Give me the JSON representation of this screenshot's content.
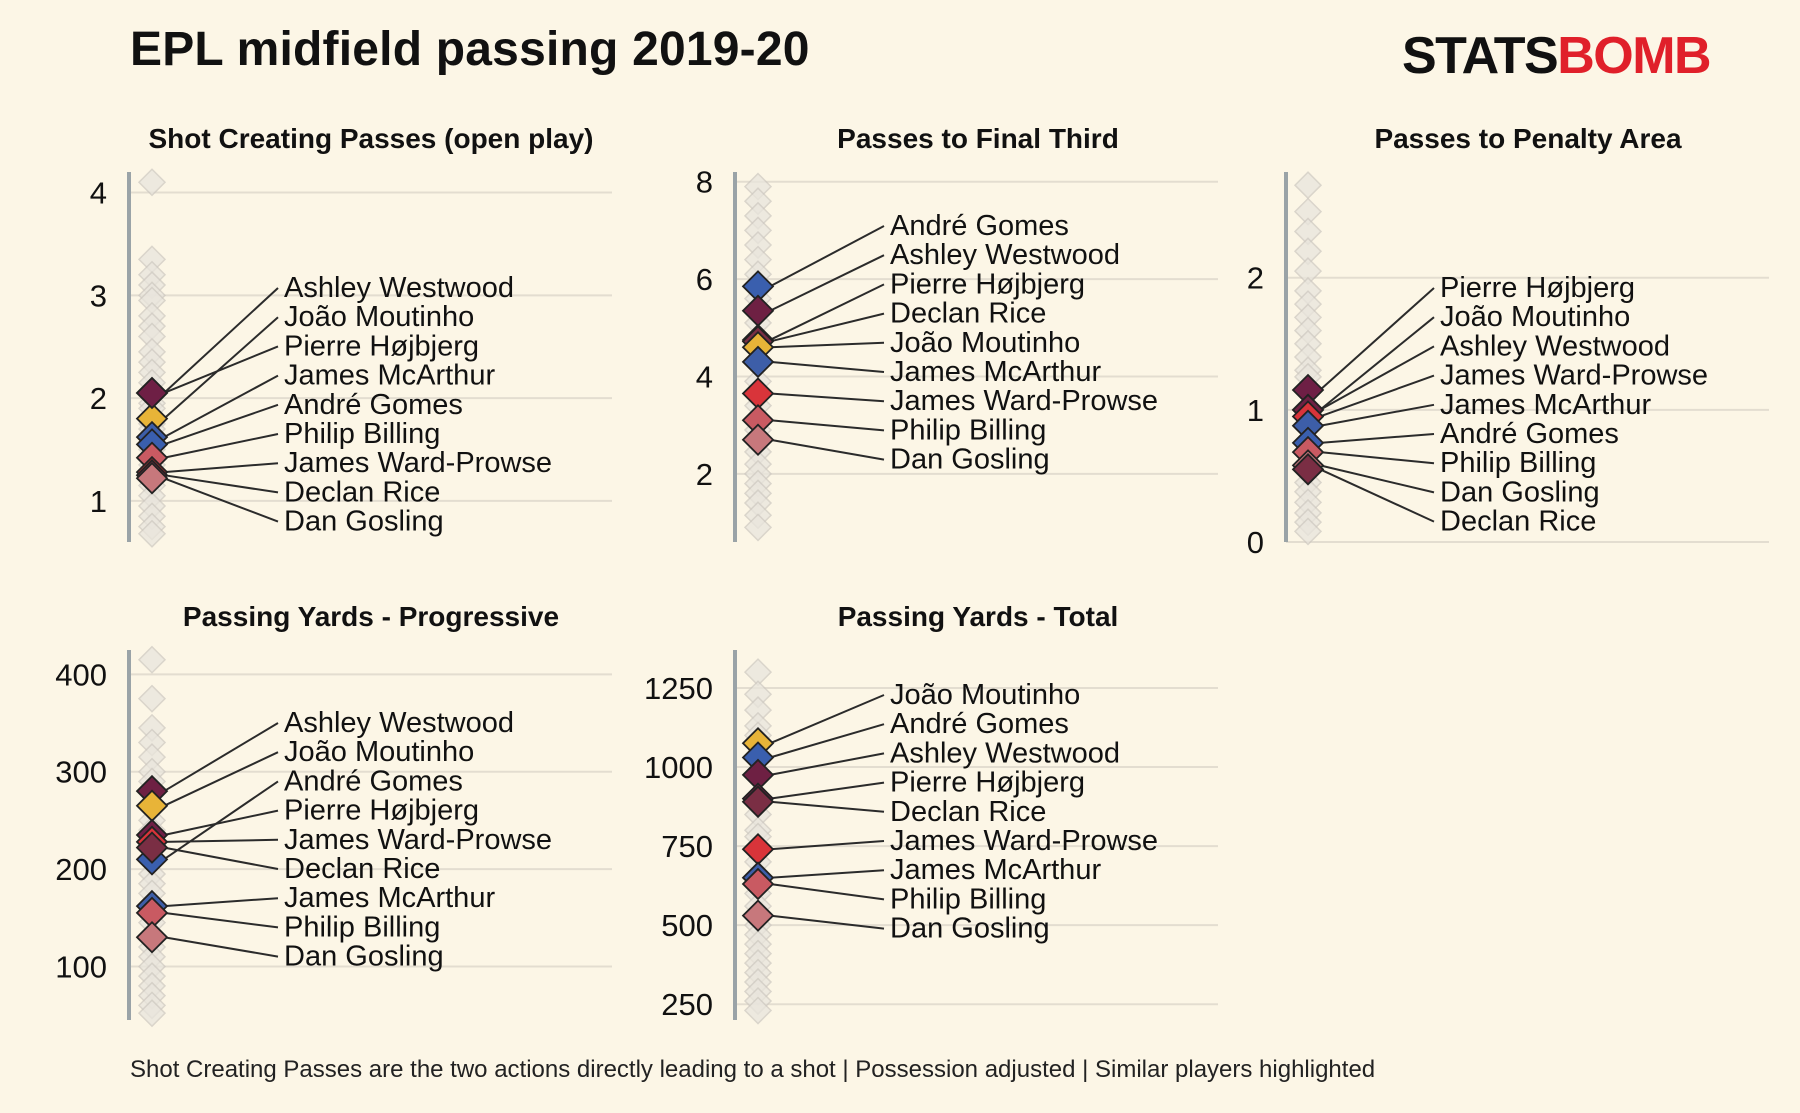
{
  "title": "EPL midfield passing 2019-20",
  "logo": {
    "part1": "STATS",
    "part2": "BOMB",
    "color_dark": "#111111",
    "color_accent": "#e0202a"
  },
  "caption": "Shot Creating Passes are the two actions directly leading to a shot | Possession adjusted | Similar players highlighted",
  "colors": {
    "background": "#fcf6e6",
    "axis_line": "#9aa3a7",
    "grid_line": "#e3ddd0",
    "leader_line": "#2b2b2b",
    "background_marker_fill": "#e9e5dd",
    "background_marker_stroke": "#cfcac2"
  },
  "players": [
    {
      "name": "Ashley Westwood",
      "color": "#6e2043"
    },
    {
      "name": "João Moutinho",
      "color": "#e8b438"
    },
    {
      "name": "Pierre Højbjerg",
      "color": "#6e1f45"
    },
    {
      "name": "James McArthur",
      "color": "#3d5ea8"
    },
    {
      "name": "André Gomes",
      "color": "#3a5fae"
    },
    {
      "name": "Philip Billing",
      "color": "#c95a62"
    },
    {
      "name": "James Ward-Prowse",
      "color": "#d9343a"
    },
    {
      "name": "Declan Rice",
      "color": "#7a2e44"
    },
    {
      "name": "Dan Gosling",
      "color": "#c7787c"
    }
  ],
  "chart_data": [
    {
      "type": "scatter",
      "title": "Shot Creating Passes (open play)",
      "ylim": [
        0.6,
        4.2
      ],
      "yticks": [
        1,
        2,
        3,
        4
      ],
      "labels_order": [
        "Ashley Westwood",
        "João Moutinho",
        "Pierre Højbjerg",
        "James McArthur",
        "André Gomes",
        "Philip Billing",
        "James Ward-Prowse",
        "Declan Rice",
        "Dan Gosling"
      ],
      "values": {
        "Ashley Westwood": 2.05,
        "João Moutinho": 1.8,
        "Pierre Højbjerg": 2.05,
        "James McArthur": 1.62,
        "André Gomes": 1.55,
        "Philip Billing": 1.42,
        "James Ward-Prowse": 1.28,
        "Declan Rice": 1.25,
        "Dan Gosling": 1.22
      },
      "background_values": [
        4.1,
        3.35,
        3.2,
        3.1,
        3.0,
        2.95,
        2.8,
        2.7,
        2.6,
        2.45,
        2.35,
        2.25,
        2.15,
        1.95,
        1.9,
        1.75,
        1.7,
        1.5,
        1.35,
        1.15,
        1.05,
        0.95,
        0.85,
        0.75,
        0.68
      ]
    },
    {
      "type": "scatter",
      "title": "Passes to Final Third",
      "ylim": [
        0.6,
        8.2
      ],
      "yticks": [
        2,
        4,
        6,
        8
      ],
      "labels_order": [
        "André Gomes",
        "Ashley Westwood",
        "Pierre Højbjerg",
        "Declan Rice",
        "João Moutinho",
        "James McArthur",
        "James Ward-Prowse",
        "Philip Billing",
        "Dan Gosling"
      ],
      "values": {
        "André Gomes": 5.85,
        "Ashley Westwood": 5.35,
        "Pierre Højbjerg": 4.75,
        "Declan Rice": 4.72,
        "João Moutinho": 4.6,
        "James McArthur": 4.3,
        "James Ward-Prowse": 3.65,
        "Philip Billing": 3.1,
        "Dan Gosling": 2.7
      },
      "background_values": [
        7.9,
        7.6,
        7.3,
        7.0,
        6.7,
        6.4,
        6.1,
        5.6,
        5.1,
        3.9,
        3.4,
        2.9,
        2.45,
        2.2,
        2.0,
        1.8,
        1.6,
        1.4,
        1.15,
        0.9
      ]
    },
    {
      "type": "scatter",
      "title": "Passes to Penalty Area",
      "ylim": [
        0,
        2.8
      ],
      "yticks": [
        0,
        1,
        2
      ],
      "labels_order": [
        "Pierre Højbjerg",
        "João Moutinho",
        "Ashley Westwood",
        "James Ward-Prowse",
        "James McArthur",
        "André Gomes",
        "Philip Billing",
        "Dan Gosling",
        "Declan Rice"
      ],
      "values": {
        "Pierre Højbjerg": 1.15,
        "João Moutinho": 1.0,
        "Ashley Westwood": 1.0,
        "James Ward-Prowse": 0.95,
        "James McArthur": 0.88,
        "André Gomes": 0.75,
        "Philip Billing": 0.68,
        "Dan Gosling": 0.58,
        "Declan Rice": 0.55
      },
      "background_values": [
        2.7,
        2.5,
        2.35,
        2.2,
        2.05,
        1.9,
        1.8,
        1.7,
        1.6,
        1.5,
        1.4,
        1.3,
        1.25,
        0.45,
        0.38,
        0.3,
        0.22,
        0.15,
        0.08
      ]
    },
    {
      "type": "scatter",
      "title": "Passing Yards - Progressive",
      "ylim": [
        45,
        425
      ],
      "yticks": [
        100,
        200,
        300,
        400
      ],
      "labels_order": [
        "Ashley Westwood",
        "João Moutinho",
        "André Gomes",
        "Pierre Højbjerg",
        "James Ward-Prowse",
        "Declan Rice",
        "James McArthur",
        "Philip Billing",
        "Dan Gosling"
      ],
      "values": {
        "Ashley Westwood": 280,
        "João Moutinho": 265,
        "André Gomes": 210,
        "Pierre Højbjerg": 235,
        "James Ward-Prowse": 228,
        "Declan Rice": 222,
        "James McArthur": 162,
        "Philip Billing": 155,
        "Dan Gosling": 130
      },
      "background_values": [
        415,
        375,
        345,
        330,
        315,
        300,
        290,
        250,
        240,
        195,
        185,
        175,
        145,
        120,
        110,
        100,
        90,
        80,
        70,
        60,
        52
      ]
    },
    {
      "type": "scatter",
      "title": "Passing Yards - Total",
      "ylim": [
        200,
        1370
      ],
      "yticks": [
        250,
        500,
        750,
        1000,
        1250
      ],
      "labels_order": [
        "João Moutinho",
        "André Gomes",
        "Ashley Westwood",
        "Pierre Højbjerg",
        "Declan Rice",
        "James Ward-Prowse",
        "James McArthur",
        "Philip Billing",
        "Dan Gosling"
      ],
      "values": {
        "João Moutinho": 1075,
        "André Gomes": 1030,
        "Ashley Westwood": 975,
        "Pierre Højbjerg": 900,
        "Declan Rice": 890,
        "James Ward-Prowse": 740,
        "James McArthur": 650,
        "Philip Billing": 630,
        "Dan Gosling": 530
      },
      "background_values": [
        1300,
        1230,
        1180,
        1130,
        1100,
        850,
        800,
        780,
        700,
        600,
        560,
        500,
        470,
        440,
        410,
        380,
        350,
        320,
        290,
        260,
        230
      ]
    }
  ]
}
